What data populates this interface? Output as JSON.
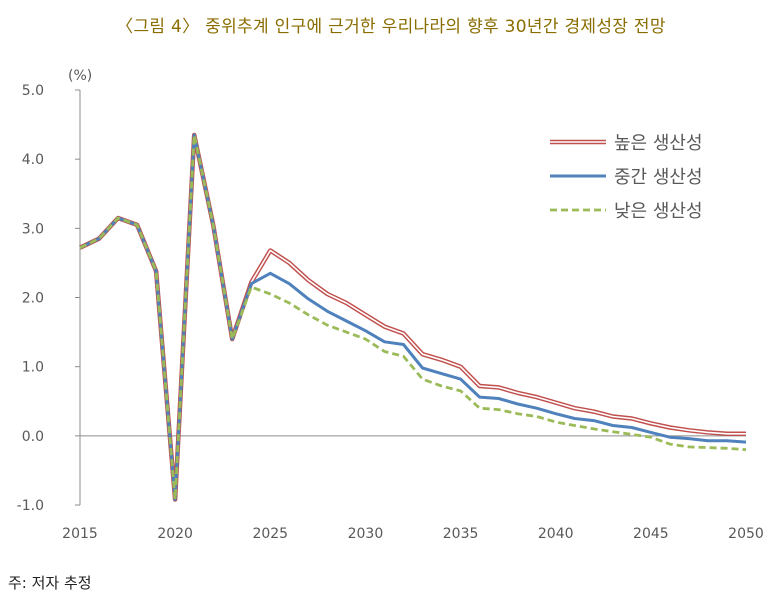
{
  "title": "〈그림 4〉 중위추계 인구에 근거한 우리나라의 향후 30년간 경제성장 전망",
  "note": "주: 저자 추정",
  "chart_data": {
    "type": "line",
    "title": "〈그림 4〉 중위추계 인구에 근거한 우리나라의 향후 30년간 경제성장 전망",
    "unit_label": "(%)",
    "xlabel": "",
    "ylabel": "",
    "xlim": [
      2015,
      2050
    ],
    "ylim": [
      -1.0,
      5.0
    ],
    "x_ticks": [
      "2015",
      "2020",
      "2025",
      "2030",
      "2035",
      "2040",
      "2045",
      "2050"
    ],
    "y_ticks": [
      "5.0",
      "4.0",
      "3.0",
      "2.0",
      "1.0",
      "0.0",
      "-1.0"
    ],
    "grid": false,
    "legend_position": "top-right",
    "x": [
      2015,
      2016,
      2017,
      2018,
      2019,
      2020,
      2021,
      2022,
      2023,
      2024,
      2025,
      2026,
      2027,
      2028,
      2029,
      2030,
      2031,
      2032,
      2033,
      2034,
      2035,
      2036,
      2037,
      2038,
      2039,
      2040,
      2041,
      2042,
      2043,
      2044,
      2045,
      2046,
      2047,
      2048,
      2049,
      2050
    ],
    "series": [
      {
        "name": "높은 생산성",
        "color": "#c0504d",
        "style": "double",
        "values": [
          2.72,
          2.85,
          3.15,
          3.05,
          2.38,
          -0.92,
          4.35,
          3.05,
          1.4,
          2.22,
          2.68,
          2.5,
          2.25,
          2.05,
          1.92,
          1.75,
          1.58,
          1.48,
          1.18,
          1.1,
          1.0,
          0.72,
          0.7,
          0.62,
          0.56,
          0.48,
          0.4,
          0.35,
          0.28,
          0.25,
          0.18,
          0.12,
          0.08,
          0.05,
          0.03,
          0.03
        ]
      },
      {
        "name": "중간 생산성",
        "color": "#4f81bd",
        "style": "solid",
        "values": [
          2.72,
          2.85,
          3.15,
          3.05,
          2.38,
          -0.92,
          4.35,
          3.05,
          1.4,
          2.2,
          2.35,
          2.2,
          1.98,
          1.8,
          1.66,
          1.52,
          1.36,
          1.32,
          0.98,
          0.9,
          0.82,
          0.56,
          0.54,
          0.46,
          0.4,
          0.32,
          0.25,
          0.22,
          0.15,
          0.12,
          0.05,
          -0.02,
          -0.04,
          -0.07,
          -0.07,
          -0.09
        ]
      },
      {
        "name": "낮은 생산성",
        "color": "#9bbb59",
        "style": "dashed",
        "values": [
          2.72,
          2.85,
          3.15,
          3.05,
          2.38,
          -0.92,
          4.35,
          3.05,
          1.4,
          2.15,
          2.05,
          1.92,
          1.75,
          1.6,
          1.5,
          1.4,
          1.22,
          1.15,
          0.82,
          0.72,
          0.65,
          0.4,
          0.38,
          0.32,
          0.28,
          0.2,
          0.15,
          0.1,
          0.06,
          0.02,
          -0.02,
          -0.12,
          -0.16,
          -0.17,
          -0.18,
          -0.2
        ]
      }
    ]
  }
}
